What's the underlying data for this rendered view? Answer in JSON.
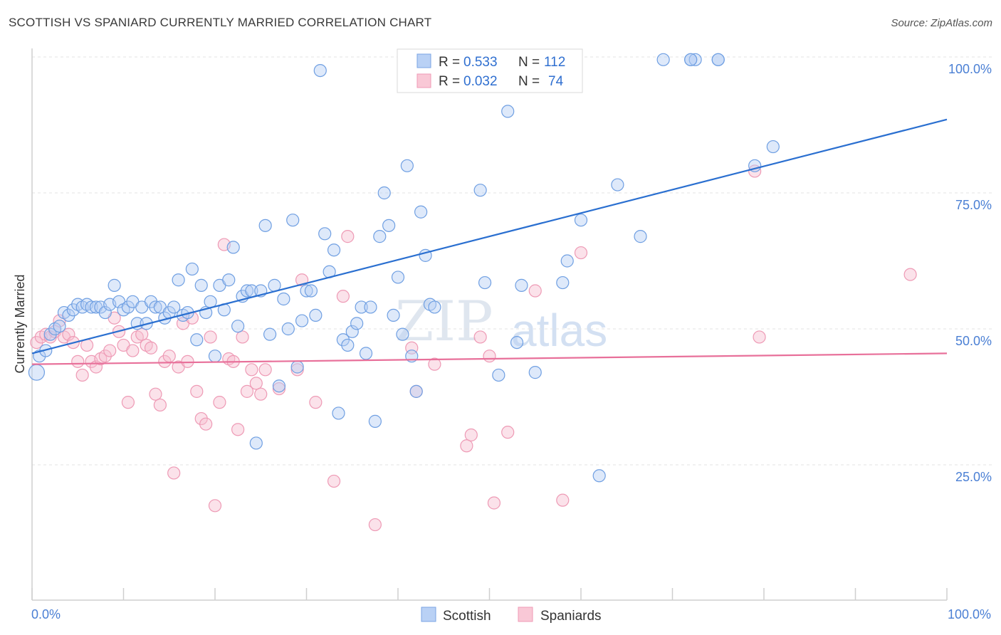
{
  "title": "SCOTTISH VS SPANIARD CURRENTLY MARRIED CORRELATION CHART",
  "source": "Source: ZipAtlas.com",
  "watermark": {
    "zip": "ZIP",
    "atlas": "atlas"
  },
  "legend": {
    "rows": [
      {
        "r_label": "R =",
        "r_value": "0.533",
        "n_label": "N =",
        "n_value": "112"
      },
      {
        "r_label": "R =",
        "r_value": "0.032",
        "n_label": "N =",
        "n_value": "74"
      }
    ]
  },
  "bottom_legend": {
    "scottish": "Scottish",
    "spaniards": "Spaniards"
  },
  "chart_data": {
    "type": "scatter",
    "title": "SCOTTISH VS SPANIARD CURRENTLY MARRIED CORRELATION CHART",
    "xlabel": "",
    "ylabel": "Currently Married",
    "xlim": [
      0,
      100
    ],
    "ylim": [
      0,
      105
    ],
    "x_tick_labels": [
      "0.0%",
      "100.0%"
    ],
    "y_tick_labels": [
      "25.0%",
      "50.0%",
      "75.0%",
      "100.0%"
    ],
    "y_ticks": [
      25,
      50,
      75,
      100
    ],
    "grid": true,
    "legend_placement": "top-center",
    "colors": {
      "scottish": "#6fa0e6",
      "spaniards": "#f2a7bf",
      "scottish_line": "#2a6fd0",
      "spaniards_line": "#e8709a"
    },
    "series": [
      {
        "name": "Scottish",
        "R": 0.533,
        "N": 112,
        "trend": {
          "x": [
            0,
            100
          ],
          "y": [
            45.5,
            88.5
          ]
        },
        "points": [
          [
            0.5,
            42
          ],
          [
            0.8,
            45
          ],
          [
            1.5,
            46
          ],
          [
            2,
            49
          ],
          [
            2.5,
            50
          ],
          [
            3,
            50.5
          ],
          [
            3.5,
            53
          ],
          [
            4,
            52.5
          ],
          [
            4.5,
            53.5
          ],
          [
            5,
            54.5
          ],
          [
            5.5,
            54
          ],
          [
            6,
            54.5
          ],
          [
            6.5,
            54
          ],
          [
            7,
            54
          ],
          [
            7.5,
            54
          ],
          [
            8,
            53
          ],
          [
            8.5,
            54.5
          ],
          [
            9,
            58
          ],
          [
            9.5,
            55
          ],
          [
            10,
            53.5
          ],
          [
            10.5,
            54
          ],
          [
            11,
            55
          ],
          [
            11.5,
            51
          ],
          [
            12,
            54
          ],
          [
            12.5,
            51
          ],
          [
            13,
            55
          ],
          [
            13.5,
            54
          ],
          [
            14,
            54
          ],
          [
            14.5,
            52
          ],
          [
            15,
            53
          ],
          [
            15.5,
            54
          ],
          [
            16,
            59
          ],
          [
            16.5,
            52.5
          ],
          [
            17,
            53
          ],
          [
            17.5,
            61
          ],
          [
            18,
            48
          ],
          [
            18.5,
            58
          ],
          [
            19,
            53
          ],
          [
            19.5,
            55
          ],
          [
            20,
            45
          ],
          [
            20.5,
            58
          ],
          [
            21,
            53.5
          ],
          [
            21.5,
            59
          ],
          [
            22,
            65
          ],
          [
            22.5,
            50.5
          ],
          [
            23,
            56
          ],
          [
            23.5,
            57
          ],
          [
            24,
            57
          ],
          [
            24.5,
            29
          ],
          [
            25,
            57
          ],
          [
            25.5,
            69
          ],
          [
            26,
            49
          ],
          [
            26.5,
            58
          ],
          [
            27,
            39.5
          ],
          [
            27.5,
            55.5
          ],
          [
            28,
            50
          ],
          [
            28.5,
            70
          ],
          [
            29,
            43
          ],
          [
            29.5,
            51.5
          ],
          [
            30,
            57
          ],
          [
            30.5,
            57
          ],
          [
            31,
            52.5
          ],
          [
            31.5,
            97.5
          ],
          [
            32,
            67.5
          ],
          [
            32.5,
            60.5
          ],
          [
            33,
            64.5
          ],
          [
            33.5,
            34.5
          ],
          [
            34,
            48
          ],
          [
            34.5,
            47
          ],
          [
            35,
            49.5
          ],
          [
            35.5,
            51
          ],
          [
            36,
            54
          ],
          [
            36.5,
            45.5
          ],
          [
            37,
            54
          ],
          [
            37.5,
            33
          ],
          [
            38,
            67
          ],
          [
            38.5,
            75
          ],
          [
            39,
            69
          ],
          [
            39.5,
            52.5
          ],
          [
            40,
            59.5
          ],
          [
            40.5,
            49
          ],
          [
            41,
            80
          ],
          [
            41.5,
            45
          ],
          [
            42,
            38.5
          ],
          [
            42.5,
            71.5
          ],
          [
            43,
            63.5
          ],
          [
            43.5,
            54.5
          ],
          [
            44,
            54
          ],
          [
            47,
            99.5
          ],
          [
            49,
            75.5
          ],
          [
            49.5,
            58.5
          ],
          [
            51,
            41.5
          ],
          [
            52,
            90
          ],
          [
            53,
            47.5
          ],
          [
            53.5,
            58
          ],
          [
            55,
            42
          ],
          [
            58,
            58.5
          ],
          [
            58.5,
            62.5
          ],
          [
            60,
            70
          ],
          [
            62,
            23
          ],
          [
            64,
            76.5
          ],
          [
            66.5,
            67
          ],
          [
            69,
            99.5
          ],
          [
            72,
            99.5
          ],
          [
            72.5,
            99.5
          ],
          [
            75,
            99.5
          ],
          [
            79,
            80
          ],
          [
            81,
            83.5
          ],
          [
            72,
            99.5
          ],
          [
            75,
            99.5
          ],
          [
            46,
            97.5
          ],
          [
            48,
            97.5
          ]
        ]
      },
      {
        "name": "Spaniards",
        "R": 0.032,
        "N": 74,
        "trend": {
          "x": [
            0,
            100
          ],
          "y": [
            43.5,
            45.5
          ]
        },
        "points": [
          [
            0.5,
            47.5
          ],
          [
            1,
            48.5
          ],
          [
            1.5,
            49
          ],
          [
            2,
            48.5
          ],
          [
            2.5,
            49.5
          ],
          [
            3,
            51.5
          ],
          [
            3.5,
            48.5
          ],
          [
            4,
            49
          ],
          [
            4.5,
            47.5
          ],
          [
            5,
            44
          ],
          [
            5.5,
            41.5
          ],
          [
            6,
            47
          ],
          [
            6.5,
            44
          ],
          [
            7,
            43
          ],
          [
            7.5,
            44.5
          ],
          [
            8,
            45
          ],
          [
            8.5,
            46
          ],
          [
            9,
            52
          ],
          [
            9.5,
            49.5
          ],
          [
            10,
            47
          ],
          [
            10.5,
            36.5
          ],
          [
            11,
            46
          ],
          [
            11.5,
            48.5
          ],
          [
            12,
            49
          ],
          [
            12.5,
            47
          ],
          [
            13,
            46.5
          ],
          [
            13.5,
            38
          ],
          [
            14,
            36
          ],
          [
            14.5,
            44
          ],
          [
            15,
            45
          ],
          [
            15.5,
            23.5
          ],
          [
            16,
            43
          ],
          [
            16.5,
            51
          ],
          [
            17,
            44
          ],
          [
            17.5,
            52
          ],
          [
            18,
            38.5
          ],
          [
            18.5,
            33.5
          ],
          [
            19,
            32.5
          ],
          [
            19.5,
            48.5
          ],
          [
            20,
            17.5
          ],
          [
            20.5,
            36.5
          ],
          [
            21,
            65.5
          ],
          [
            21.5,
            44.5
          ],
          [
            22,
            44
          ],
          [
            22.5,
            31.5
          ],
          [
            23,
            48.5
          ],
          [
            23.5,
            38.5
          ],
          [
            24,
            42.5
          ],
          [
            24.5,
            40
          ],
          [
            25,
            38
          ],
          [
            25.5,
            42.5
          ],
          [
            27,
            39
          ],
          [
            29,
            42.5
          ],
          [
            29.5,
            59
          ],
          [
            31,
            36.5
          ],
          [
            33,
            22
          ],
          [
            34,
            56
          ],
          [
            34.5,
            67
          ],
          [
            37.5,
            14
          ],
          [
            41.5,
            46.5
          ],
          [
            42,
            38.5
          ],
          [
            44,
            43.5
          ],
          [
            47.5,
            28.5
          ],
          [
            48,
            30.5
          ],
          [
            49,
            48.5
          ],
          [
            50,
            45
          ],
          [
            50.5,
            18
          ],
          [
            52,
            31
          ],
          [
            55,
            57
          ],
          [
            58,
            18.5
          ],
          [
            60,
            64
          ],
          [
            79,
            79
          ],
          [
            79.5,
            48.5
          ],
          [
            96,
            60
          ]
        ]
      }
    ]
  }
}
